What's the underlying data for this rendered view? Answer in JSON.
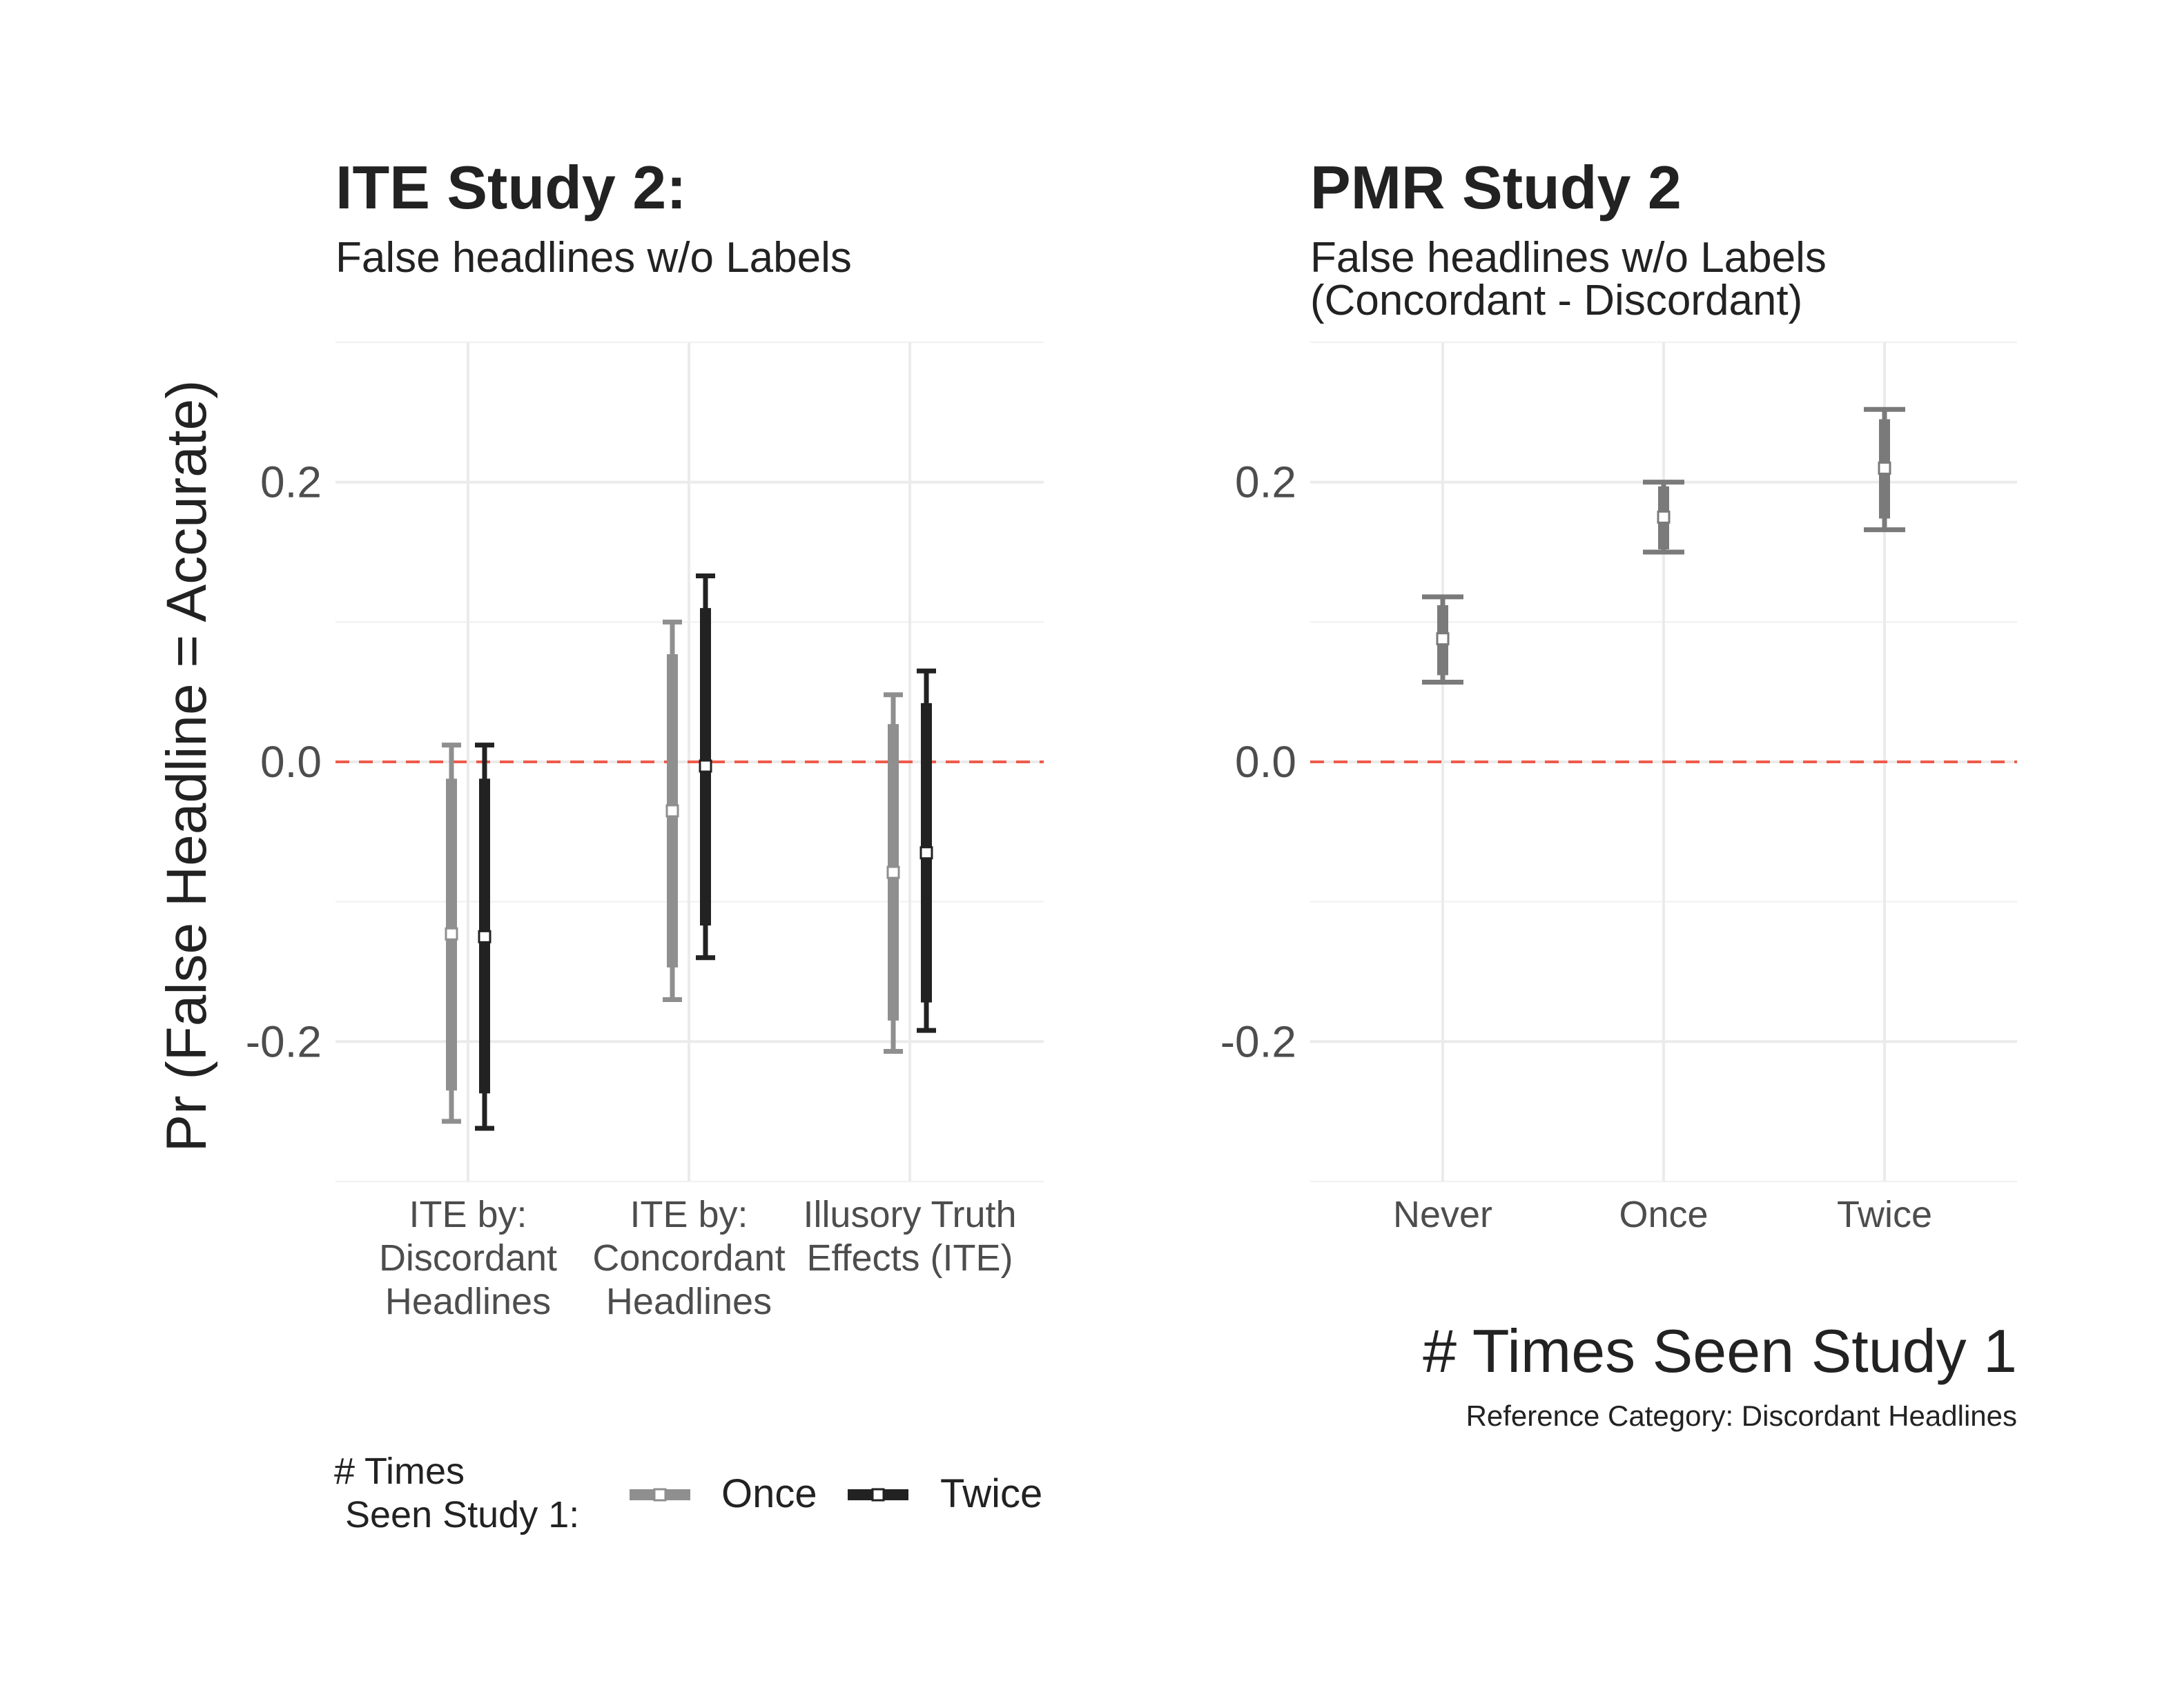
{
  "colors": {
    "once": "#8f8f8f",
    "twice": "#222222",
    "pmr": "#7a7a7a",
    "zero_line": "#ef5a4a",
    "grid": "#ebebeb",
    "text": "#222222",
    "tick_text": "#4d4d4d"
  },
  "shared": {
    "ylabel": "Pr (False Headline = Accurate)"
  },
  "chart_data": [
    {
      "type": "scatter",
      "id": "ite",
      "title": "ITE Study 2:",
      "subtitle": "False headlines w/o Labels",
      "subtitle2": "",
      "ylim": [
        -0.3,
        0.3
      ],
      "yticks": [
        0.2,
        0.0,
        -0.2
      ],
      "ytick_labels": [
        "0.2",
        "0.0",
        "-0.2"
      ],
      "zero_line": 0.0,
      "categories": [
        {
          "lines": [
            "ITE by:",
            "Discordant",
            "Headlines"
          ]
        },
        {
          "lines": [
            "ITE by:",
            "Concordant",
            "Headlines"
          ]
        },
        {
          "lines": [
            "Illusory Truth",
            "Effects (ITE)"
          ]
        }
      ],
      "series": [
        {
          "name": "Once",
          "color_key": "once",
          "points": [
            {
              "est": -0.123,
              "lo90": -0.235,
              "hi90": -0.012,
              "lo95": -0.257,
              "hi95": 0.012
            },
            {
              "est": -0.035,
              "lo90": -0.147,
              "hi90": 0.077,
              "lo95": -0.17,
              "hi95": 0.1
            },
            {
              "est": -0.079,
              "lo90": -0.185,
              "hi90": 0.027,
              "lo95": -0.207,
              "hi95": 0.048
            }
          ]
        },
        {
          "name": "Twice",
          "color_key": "twice",
          "points": [
            {
              "est": -0.125,
              "lo90": -0.237,
              "hi90": -0.012,
              "lo95": -0.262,
              "hi95": 0.012
            },
            {
              "est": -0.003,
              "lo90": -0.117,
              "hi90": 0.11,
              "lo95": -0.14,
              "hi95": 0.133
            },
            {
              "est": -0.065,
              "lo90": -0.172,
              "hi90": 0.042,
              "lo95": -0.192,
              "hi95": 0.065
            }
          ]
        }
      ],
      "legend": {
        "title_lines": [
          "# Times",
          "Seen Study 1:"
        ],
        "items": [
          "Once",
          "Twice"
        ],
        "placement": "bottom"
      }
    },
    {
      "type": "scatter",
      "id": "pmr",
      "title": "PMR Study 2",
      "subtitle": "False headlines w/o Labels",
      "subtitle2": "(Concordant - Discordant)",
      "xlabel": "# Times Seen Study 1",
      "caption": "Reference Category: Discordant Headlines",
      "ylim": [
        -0.3,
        0.3
      ],
      "yticks": [
        0.2,
        0.0,
        -0.2
      ],
      "ytick_labels": [
        "0.2",
        "0.0",
        "-0.2"
      ],
      "zero_line": 0.0,
      "categories": [
        {
          "lines": [
            "Never"
          ]
        },
        {
          "lines": [
            "Once"
          ]
        },
        {
          "lines": [
            "Twice"
          ]
        }
      ],
      "series": [
        {
          "name": "",
          "color_key": "pmr",
          "points": [
            {
              "est": 0.088,
              "lo90": 0.062,
              "hi90": 0.112,
              "lo95": 0.057,
              "hi95": 0.118
            },
            {
              "est": 0.175,
              "lo90": 0.152,
              "hi90": 0.197,
              "lo95": 0.15,
              "hi95": 0.2
            },
            {
              "est": 0.21,
              "lo90": 0.174,
              "hi90": 0.245,
              "lo95": 0.166,
              "hi95": 0.252
            }
          ]
        }
      ]
    }
  ]
}
